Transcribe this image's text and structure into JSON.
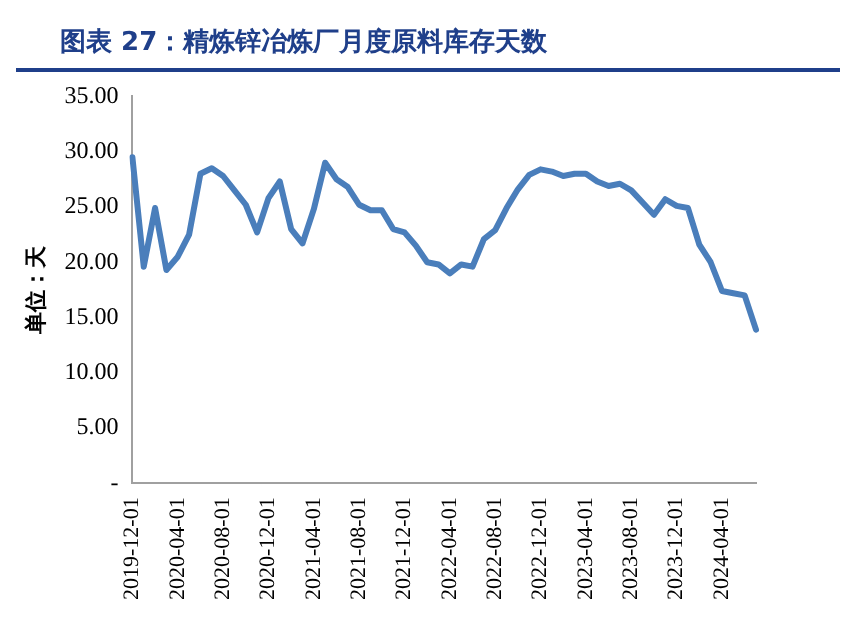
{
  "chart_data": {
    "type": "line",
    "title": "图表 27：精炼锌冶炼厂月度原料库存天数",
    "ylabel": "单位：天",
    "categories": [
      "2019-12-01",
      null,
      null,
      null,
      "2020-04-01",
      null,
      null,
      null,
      "2020-08-01",
      null,
      null,
      null,
      "2020-12-01",
      null,
      null,
      null,
      "2021-04-01",
      null,
      null,
      null,
      "2021-08-01",
      null,
      null,
      null,
      "2021-12-01",
      null,
      null,
      null,
      "2022-04-01",
      null,
      null,
      null,
      "2022-08-01",
      null,
      null,
      null,
      "2022-12-01",
      null,
      null,
      null,
      "2023-04-01",
      null,
      null,
      null,
      "2023-08-01",
      null,
      null,
      null,
      "2023-12-01",
      null,
      null,
      null,
      "2024-04-01",
      null,
      null,
      null
    ],
    "series": [
      {
        "color": "#4a7ebb",
        "values": [
          29.5,
          19.6,
          24.9,
          19.3,
          20.5,
          22.5,
          28.0,
          28.5,
          27.8,
          26.5,
          25.2,
          22.7,
          25.8,
          27.3,
          23.0,
          21.7,
          24.8,
          29.0,
          27.5,
          26.8,
          25.2,
          24.7,
          24.7,
          23.0,
          22.7,
          21.5,
          20.0,
          19.8,
          19.0,
          19.8,
          19.6,
          22.1,
          22.9,
          24.9,
          26.6,
          27.9,
          28.4,
          28.2,
          27.8,
          28.0,
          28.0,
          27.3,
          26.9,
          27.1,
          26.5,
          25.4,
          24.3,
          25.7,
          25.1,
          24.9,
          21.6,
          20.0,
          17.4,
          17.2,
          17.0,
          13.9
        ]
      }
    ],
    "ylim": [
      0,
      35
    ],
    "yticks": [
      {
        "value": 0,
        "label": "-"
      },
      {
        "value": 5,
        "label": "5.00"
      },
      {
        "value": 10,
        "label": "10.00"
      },
      {
        "value": 15,
        "label": "15.00"
      },
      {
        "value": 20,
        "label": "20.00"
      },
      {
        "value": 25,
        "label": "25.00"
      },
      {
        "value": 30,
        "label": "30.00"
      },
      {
        "value": 35,
        "label": "35.00"
      }
    ],
    "grid": false,
    "legend": false,
    "marker": "none",
    "line_style": "solid"
  }
}
